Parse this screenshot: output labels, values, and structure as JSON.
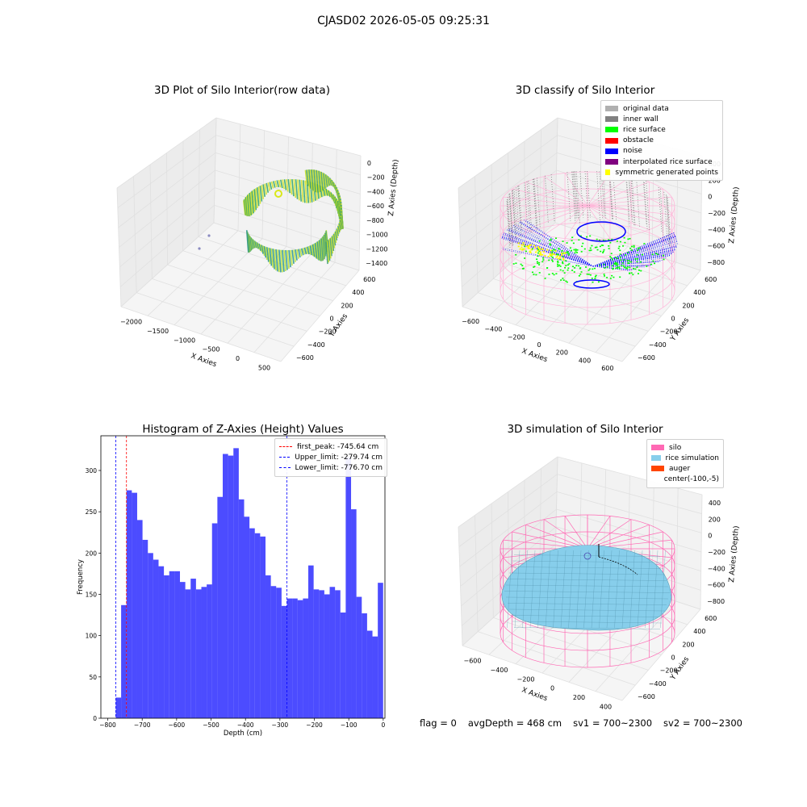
{
  "suptitle": "CJASD02 2026-05-05 09:25:31",
  "panels": {
    "raw": {
      "title": "3D Plot of Silo Interior(row data)",
      "xlabel": "X Axies",
      "ylabel": "Y Axies",
      "zlabel": "Z Axies (Depth)",
      "xticks": [
        "−2000",
        "−1500",
        "−1000",
        "−500",
        "0",
        "500"
      ],
      "yticks": [
        "−600",
        "−400",
        "−200",
        "0",
        "200",
        "400",
        "600"
      ],
      "zticks": [
        "0",
        "−200",
        "−400",
        "−600",
        "−800",
        "−1000",
        "−1200",
        "−1400"
      ]
    },
    "classify": {
      "title": "3D classify of Silo Interior",
      "xlabel": "X Axies",
      "ylabel": "Y Axies",
      "zlabel": "Z Axies (Depth)",
      "xticks": [
        "−600",
        "−400",
        "−200",
        "0",
        "200",
        "400",
        "600"
      ],
      "yticks": [
        "−600",
        "−400",
        "−200",
        "0",
        "200",
        "400",
        "600"
      ],
      "zticks": [
        "400",
        "200",
        "0",
        "−200",
        "−400",
        "−600",
        "−800"
      ],
      "legend": [
        {
          "label": "original data",
          "color": "#b0b0b0"
        },
        {
          "label": "inner wall",
          "color": "#808080"
        },
        {
          "label": "rice surface",
          "color": "#00ff00"
        },
        {
          "label": "obstacle",
          "color": "#ff0000"
        },
        {
          "label": "noise",
          "color": "#0000ff"
        },
        {
          "label": "interpolated rice surface",
          "color": "#800080"
        },
        {
          "label": "symmetric generated points",
          "color": "#ffff00"
        }
      ]
    },
    "simulation": {
      "title": "3D simulation of Silo Interior",
      "xlabel": "X Axies",
      "ylabel": "Y Axies",
      "zlabel": "Z Axies (Depth)",
      "xticks": [
        "−600",
        "−400",
        "−200",
        "0",
        "200",
        "400"
      ],
      "yticks": [
        "−600",
        "−400",
        "−200",
        "0",
        "200",
        "400",
        "600"
      ],
      "zticks": [
        "400",
        "200",
        "0",
        "−200",
        "−400",
        "−600",
        "−800"
      ],
      "legend": [
        {
          "label": "silo",
          "color": "#ff69b4"
        },
        {
          "label": "rice simulation",
          "color": "#87ceeb"
        },
        {
          "label": "auger",
          "color": "#ff4500"
        },
        {
          "label": "center(-100,-5)",
          "color": ""
        }
      ]
    }
  },
  "footer": {
    "flag": "flag = 0",
    "avg": "avgDepth = 468 cm",
    "sv1": "sv1 = 700~2300",
    "sv2": "sv2 = 700~2300"
  },
  "chart_data": {
    "type": "bar",
    "title": "Histogram of Z-Axies (Height) Values",
    "xlabel": "Depth (cm)",
    "ylabel": "Frequency",
    "xlim": [
      -820,
      5
    ],
    "ylim": [
      0,
      342
    ],
    "xticks": [
      -800,
      -700,
      -600,
      -500,
      -400,
      -300,
      -200,
      -100,
      0
    ],
    "yticks": [
      0,
      50,
      100,
      150,
      200,
      250,
      300
    ],
    "bin_start": -776.7,
    "bin_width": 15.53,
    "values": [
      25,
      137,
      276,
      273,
      240,
      216,
      200,
      192,
      184,
      173,
      178,
      178,
      165,
      156,
      169,
      156,
      159,
      162,
      236,
      268,
      320,
      318,
      327,
      265,
      244,
      230,
      224,
      220,
      173,
      160,
      158,
      136,
      145,
      145,
      143,
      145,
      185,
      156,
      155,
      150,
      159,
      155,
      128,
      316,
      253,
      147,
      127,
      106,
      99,
      164
    ],
    "color": "#0000ff",
    "lines": [
      {
        "label": "first_peak: -745.64 cm",
        "x": -745.64,
        "color": "#ff0000"
      },
      {
        "label": "Upper_limit: -279.74 cm",
        "x": -279.74,
        "color": "#0000ff"
      },
      {
        "label": "Lower_limit: -776.70 cm",
        "x": -776.7,
        "color": "#0000ff"
      }
    ]
  }
}
